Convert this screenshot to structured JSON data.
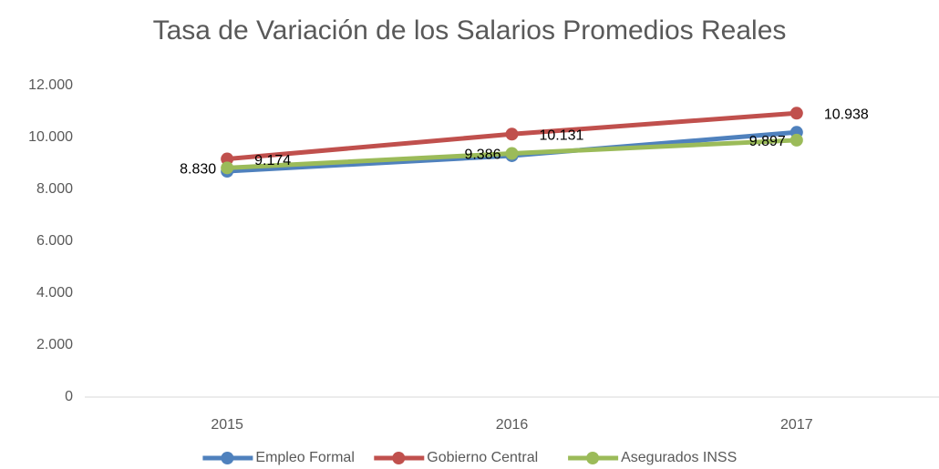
{
  "chart_data": {
    "type": "line",
    "title": "Tasa de Variación de los Salarios Promedios Reales",
    "categories": [
      "2015",
      "2016",
      "2017"
    ],
    "series": [
      {
        "name": "Empleo Formal",
        "color": "#4f81bd",
        "values": [
          8700,
          9300,
          10200
        ]
      },
      {
        "name": "Gobierno Central",
        "color": "#c0504d",
        "values": [
          9174,
          10131,
          10938
        ],
        "value_labels": [
          "9.174",
          "10.131",
          "10.938"
        ]
      },
      {
        "name": "Asegurados INSS",
        "color": "#9bbb59",
        "values": [
          8830,
          9386,
          9897
        ],
        "value_labels": [
          "8.830",
          "9.386",
          "9.897"
        ]
      }
    ],
    "ylim": [
      0,
      12000
    ],
    "yticks": [
      0,
      {
        "value": 2000,
        "label": "2.000"
      },
      {
        "value": 4000,
        "label": "4.000"
      },
      {
        "value": 6000,
        "label": "6.000"
      },
      {
        "value": 8000,
        "label": "8.000"
      },
      {
        "value": 10000,
        "label": "10.000"
      },
      {
        "value": 12000,
        "label": "12.000"
      }
    ],
    "grid": false,
    "legend": "bottom"
  }
}
